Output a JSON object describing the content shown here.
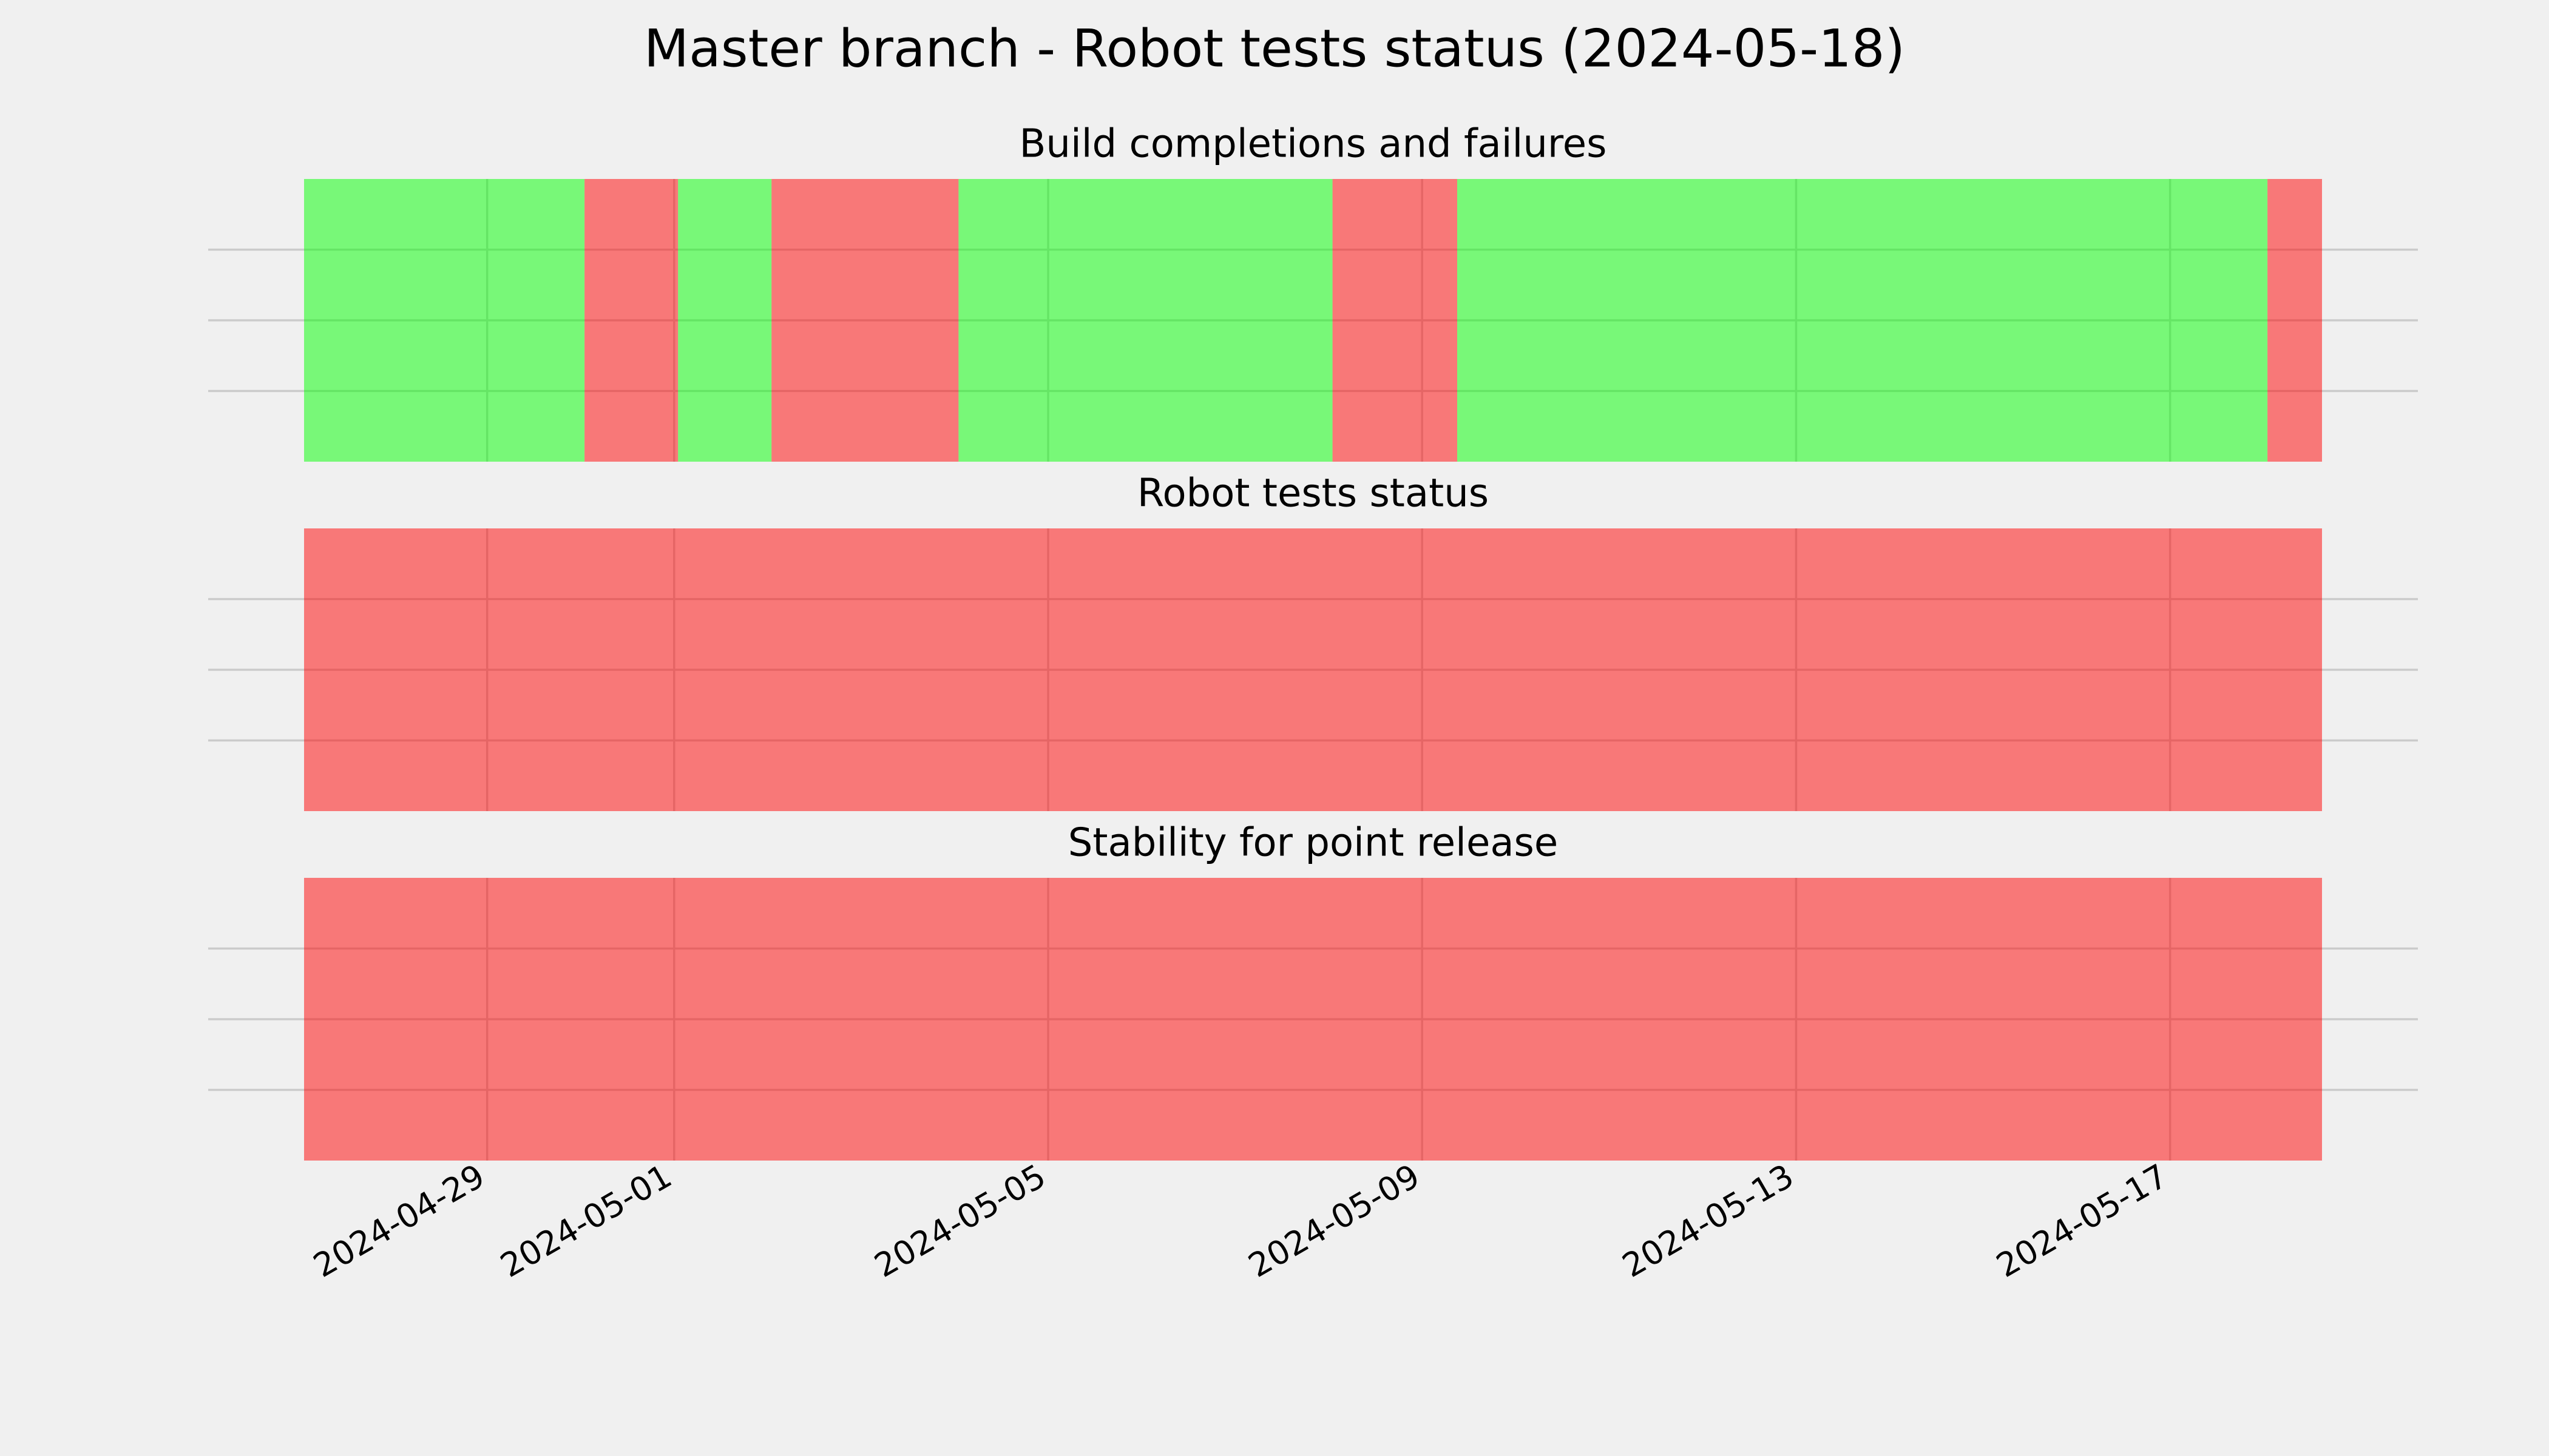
{
  "chart_data": {
    "type": "timeline",
    "title": "Master branch - Robot tests status (2024-05-18)",
    "xlim": [
      "2024-04-27T01:00",
      "2024-05-18T15:00"
    ],
    "xticks": [
      "2024-04-29",
      "2024-05-01",
      "2024-05-05",
      "2024-05-09",
      "2024-05-13",
      "2024-05-17"
    ],
    "ylim": [
      0,
      1
    ],
    "yticks": [
      0.25,
      0.5,
      0.75
    ],
    "grid": true,
    "opacity": 0.5,
    "panels": [
      {
        "title": "Build completions and failures",
        "starts": [
          "2024-04-27T01:00",
          "2024-04-30T01:00",
          "2024-05-01T01:00",
          "2024-05-02T01:00",
          "2024-05-04T01:00",
          "2024-05-08T01:00",
          "2024-05-09T09:00",
          "2024-05-18T01:00"
        ],
        "ends": [
          "2024-04-30T01:00",
          "2024-05-01T01:00",
          "2024-05-02T01:00",
          "2024-05-04T01:00",
          "2024-05-08T01:00",
          "2024-05-09T09:00",
          "2024-05-18T01:00",
          "2024-05-18T15:00"
        ],
        "colors": [
          "#00ff00",
          "#ff0000",
          "#00ff00",
          "#ff0000",
          "#00ff00",
          "#ff0000",
          "#00ff00",
          "#ff0000"
        ]
      },
      {
        "title": "Robot tests status",
        "starts": [
          "2024-04-27T01:00"
        ],
        "ends": [
          "2024-05-18T15:00"
        ],
        "colors": [
          "#ff0000"
        ]
      },
      {
        "title": "Stability for point release",
        "starts": [
          "2024-04-27T01:00"
        ],
        "ends": [
          "2024-05-18T15:00"
        ],
        "colors": [
          "#ff0000"
        ]
      }
    ]
  }
}
